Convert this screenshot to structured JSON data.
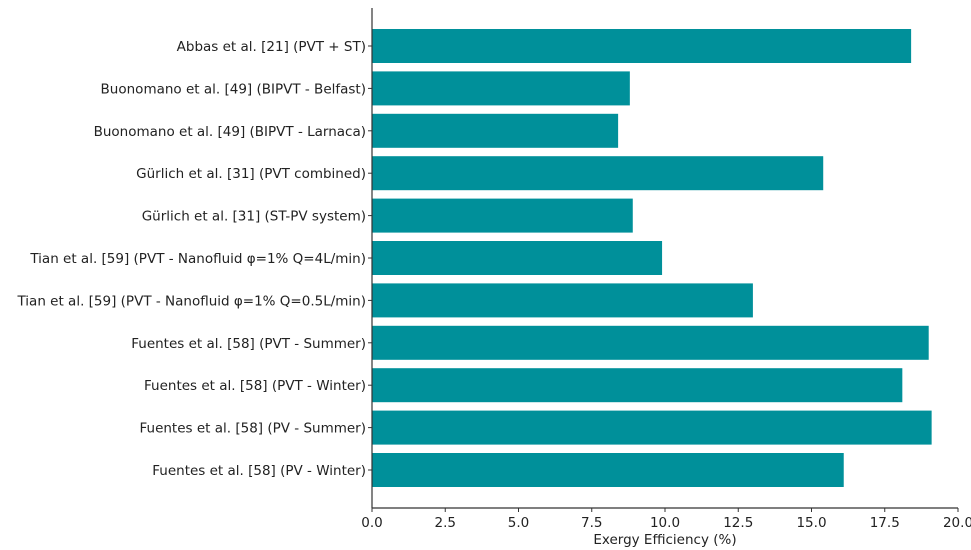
{
  "chart_data": {
    "type": "bar",
    "orientation": "horizontal",
    "categories": [
      "Abbas et al. [21] (PVT + ST)",
      "Buonomano et al. [49] (BIPVT - Belfast)",
      "Buonomano et al. [49] (BIPVT - Larnaca)",
      "Gürlich et al. [31] (PVT combined)",
      "Gürlich et al. [31] (ST-PV system)",
      "Tian et al. [59] (PVT - Nanofluid φ=1% Q=4L/min)",
      "Tian et al. [59] (PVT - Nanofluid φ=1% Q=0.5L/min)",
      "Fuentes et al. [58] (PVT - Summer)",
      "Fuentes et al. [58] (PVT - Winter)",
      "Fuentes et al. [58] (PV - Summer)",
      "Fuentes et al. [58] (PV - Winter)"
    ],
    "values": [
      18.4,
      8.8,
      8.4,
      15.4,
      8.9,
      9.9,
      13.0,
      19.0,
      18.1,
      19.1,
      16.1
    ],
    "xlabel": "Exergy Efficiency (%)",
    "ylabel": "",
    "title": "",
    "xlim": [
      0,
      20
    ],
    "xticks": [
      "0.0",
      "2.5",
      "5.0",
      "7.5",
      "10.0",
      "12.5",
      "15.0",
      "17.5",
      "20.0"
    ],
    "bar_color": "#00909a",
    "grid": false,
    "legend": "none"
  }
}
